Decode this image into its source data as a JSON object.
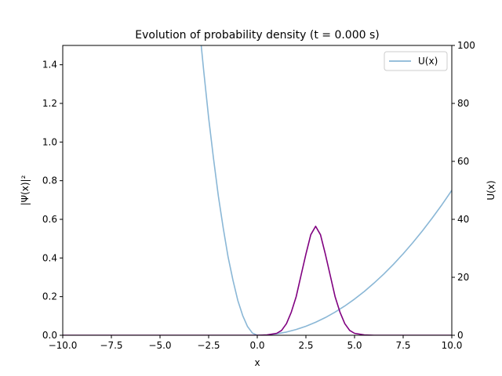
{
  "chart_data": {
    "type": "line",
    "title": "Evolution of probability density (t = 0.000 s)",
    "xlabel": "x",
    "ylabel_left": "|Ψ(x)|²",
    "ylabel_right": "U(x)",
    "xlim": [
      -10,
      10
    ],
    "ylim_left": [
      0,
      1.5
    ],
    "ylim_right": [
      0,
      100
    ],
    "x_ticks": [
      "−10.0",
      "−7.5",
      "−5.0",
      "−2.5",
      "0.0",
      "2.5",
      "5.0",
      "7.5",
      "10.0"
    ],
    "x_tick_values": [
      -10,
      -7.5,
      -5,
      -2.5,
      0,
      2.5,
      5,
      7.5,
      10
    ],
    "y_left_ticks": [
      "0.0",
      "0.2",
      "0.4",
      "0.6",
      "0.8",
      "1.0",
      "1.2",
      "1.4"
    ],
    "y_left_tick_values": [
      0,
      0.2,
      0.4,
      0.6,
      0.8,
      1.0,
      1.2,
      1.4
    ],
    "y_right_ticks": [
      "0",
      "20",
      "40",
      "60",
      "80",
      "100"
    ],
    "y_right_tick_values": [
      0,
      20,
      40,
      60,
      80,
      100
    ],
    "grid": false,
    "legend": {
      "position": "upper-right",
      "entries": [
        "U(x)"
      ]
    },
    "series": [
      {
        "name": "U(x)",
        "axis": "right",
        "color": "#8ab7d6",
        "x": [
          -3.0,
          -2.75,
          -2.5,
          -2.25,
          -2.0,
          -1.75,
          -1.5,
          -1.25,
          -1.0,
          -0.75,
          -0.5,
          -0.25,
          0.0,
          0.5,
          1.0,
          1.5,
          2.0,
          2.5,
          3.0,
          3.5,
          4.0,
          4.5,
          5.0,
          5.5,
          6.0,
          6.5,
          7.0,
          7.5,
          8.0,
          8.5,
          9.0,
          9.5,
          10.0
        ],
        "y": [
          108,
          91,
          75,
          61,
          48,
          37,
          27,
          19,
          12,
          6.8,
          3.0,
          0.75,
          0,
          0.13,
          0.5,
          1.1,
          2.0,
          3.1,
          4.5,
          6.1,
          8.0,
          10.1,
          12.5,
          15.1,
          18.0,
          21.1,
          24.5,
          28.1,
          32.0,
          36.1,
          40.5,
          45.1,
          50.0
        ]
      },
      {
        "name": "",
        "axis": "left",
        "color": "#800080",
        "x": [
          -10,
          0.0,
          0.5,
          1.0,
          1.25,
          1.5,
          1.75,
          2.0,
          2.25,
          2.5,
          2.75,
          3.0,
          3.25,
          3.5,
          3.75,
          4.0,
          4.25,
          4.5,
          4.75,
          5.0,
          5.5,
          6.0,
          10
        ],
        "y": [
          0,
          0.0,
          0.002,
          0.01,
          0.025,
          0.06,
          0.12,
          0.2,
          0.31,
          0.42,
          0.52,
          0.564,
          0.52,
          0.42,
          0.31,
          0.2,
          0.12,
          0.06,
          0.025,
          0.01,
          0.002,
          0.0,
          0
        ]
      }
    ]
  }
}
